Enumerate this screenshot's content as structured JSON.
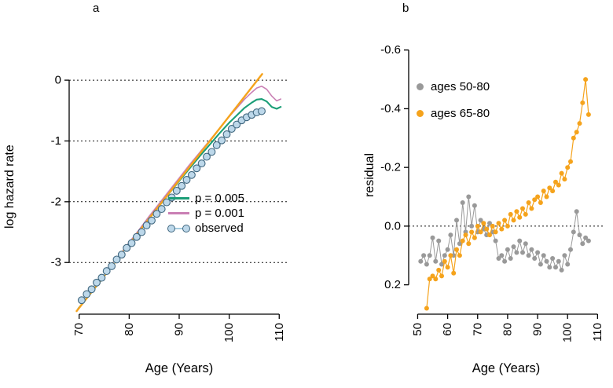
{
  "figure": {
    "background": "#ffffff",
    "panels": [
      {
        "label": "a"
      },
      {
        "label": "b"
      }
    ]
  },
  "chart_data": [
    {
      "type": "line",
      "panel": "a",
      "title": "",
      "xlabel": "Age (Years)",
      "ylabel": "log hazard rate",
      "xlim": [
        68,
        112
      ],
      "ylim": [
        -3.85,
        0.35
      ],
      "y_inverted": false,
      "grid": "dashed-horizontal",
      "gridlines_y": [
        0,
        -1,
        -2,
        -3
      ],
      "x_ticks": {
        "values": [
          70,
          80,
          90,
          100,
          110
        ],
        "labels": [
          "70",
          "80",
          "90",
          "100",
          "110"
        ],
        "rotated": true
      },
      "y_ticks": {
        "values": [
          0,
          -1,
          -2,
          -3
        ],
        "labels": [
          "0",
          "-1",
          "-2",
          "-3"
        ]
      },
      "legend_position": "center-right-inside",
      "legend": [
        {
          "label": "p = 0.005",
          "color": "#1B9E77",
          "marker": "line"
        },
        {
          "label": "p = 0.001",
          "color": "#C97FB4",
          "marker": "line"
        },
        {
          "label": "observed",
          "color": "#BDD8EA",
          "edge": "#40677F",
          "marker": "point-line"
        }
      ],
      "series": [
        {
          "name": "p = 0.005",
          "type": "line",
          "color": "#1B9E77",
          "width": 2.1,
          "x": [
            69.8,
            72,
            74,
            76,
            78,
            80,
            82,
            84,
            86,
            88,
            90,
            92,
            94,
            96,
            98,
            100,
            101.5,
            103,
            104.5,
            105.5,
            106.5,
            107.5,
            108.5,
            109.5,
            110.3
          ],
          "y": [
            -3.76,
            -3.54,
            -3.33,
            -3.12,
            -2.91,
            -2.7,
            -2.49,
            -2.28,
            -2.07,
            -1.86,
            -1.66,
            -1.46,
            -1.26,
            -1.07,
            -0.88,
            -0.7,
            -0.58,
            -0.46,
            -0.37,
            -0.32,
            -0.31,
            -0.35,
            -0.44,
            -0.47,
            -0.44
          ]
        },
        {
          "name": "p = 0.001",
          "type": "line",
          "color": "#C97FB4",
          "width": 1.6,
          "x": [
            69.8,
            72,
            74,
            76,
            78,
            80,
            82,
            84,
            86,
            88,
            90,
            92,
            94,
            96,
            98,
            100,
            101.5,
            103,
            104.5,
            105.5,
            106.5,
            107.5,
            108.5,
            109.5,
            110.3
          ],
          "y": [
            -3.76,
            -3.54,
            -3.32,
            -3.1,
            -2.89,
            -2.67,
            -2.46,
            -2.24,
            -2.03,
            -1.82,
            -1.61,
            -1.4,
            -1.2,
            -1.0,
            -0.8,
            -0.6,
            -0.46,
            -0.32,
            -0.2,
            -0.13,
            -0.1,
            -0.15,
            -0.26,
            -0.34,
            -0.31
          ]
        },
        {
          "name": "fit-line",
          "type": "line",
          "color": "#F5A31C",
          "width": 2.4,
          "x": [
            69.5,
            106.6
          ],
          "y": [
            -3.8,
            0.1
          ]
        },
        {
          "name": "observed",
          "type": "point-line",
          "color": "#A3CBDF",
          "point_fill": "#BDD8EA",
          "point_edge": "#40677F",
          "point_r": 4.4,
          "width": 1.4,
          "x": [
            70.5,
            71.5,
            72.5,
            73.5,
            74.5,
            75.5,
            76.5,
            77.5,
            78.5,
            79.5,
            80.5,
            81.5,
            82.5,
            83.5,
            84.5,
            85.5,
            86.5,
            87.5,
            88.5,
            89.5,
            90.5,
            91.5,
            92.5,
            93.5,
            94.5,
            95.5,
            96.5,
            97.5,
            98.5,
            99.5,
            100.5,
            101.5,
            102.5,
            103.5,
            104.5,
            105.5,
            106.5
          ],
          "y": [
            -3.62,
            -3.52,
            -3.44,
            -3.33,
            -3.25,
            -3.14,
            -3.06,
            -2.95,
            -2.87,
            -2.76,
            -2.68,
            -2.58,
            -2.5,
            -2.39,
            -2.31,
            -2.2,
            -2.12,
            -2.01,
            -1.93,
            -1.82,
            -1.74,
            -1.64,
            -1.56,
            -1.45,
            -1.37,
            -1.26,
            -1.18,
            -1.07,
            -0.99,
            -0.89,
            -0.8,
            -0.73,
            -0.66,
            -0.61,
            -0.57,
            -0.53,
            -0.51
          ]
        }
      ]
    },
    {
      "type": "scatter",
      "panel": "b",
      "title": "",
      "xlabel": "Age (Years)",
      "ylabel": "residual",
      "xlim": [
        47,
        112
      ],
      "ylim": [
        -0.65,
        0.3
      ],
      "y_inverted": true,
      "grid": "dashed-zero-line",
      "zero_line": 0.0,
      "x_ticks": {
        "values": [
          50,
          60,
          70,
          80,
          90,
          100,
          110
        ],
        "labels": [
          "50",
          "60",
          "70",
          "80",
          "90",
          "100",
          "110"
        ],
        "rotated": true
      },
      "y_ticks": {
        "values": [
          -0.6,
          -0.4,
          -0.2,
          0.0,
          0.2
        ],
        "labels": [
          "-0.6",
          "-0.4",
          "-0.2",
          "0.0",
          "0.2"
        ]
      },
      "legend_position": "top-left-inside",
      "legend": [
        {
          "label": "ages 50-80",
          "color": "#999999",
          "marker": "point"
        },
        {
          "label": "ages 65-80",
          "color": "#F5A31C",
          "marker": "point"
        }
      ],
      "series": [
        {
          "name": "ages 50-80",
          "type": "point-line",
          "color": "#999999",
          "point_fill": "#999999",
          "point_r": 3,
          "width": 1,
          "x": [
            51,
            52,
            53,
            54,
            55,
            56,
            57,
            58,
            59,
            60,
            61,
            62,
            63,
            64,
            65,
            66,
            67,
            68,
            69,
            70,
            71,
            72,
            73,
            74,
            75,
            76,
            77,
            78,
            79,
            80,
            81,
            82,
            83,
            84,
            85,
            86,
            87,
            88,
            89,
            90,
            91,
            92,
            93,
            94,
            95,
            96,
            97,
            98,
            99,
            100,
            101,
            102,
            103,
            104,
            105,
            106,
            107
          ],
          "y": [
            0.12,
            0.1,
            0.13,
            0.1,
            0.04,
            0.12,
            0.05,
            0.13,
            0.1,
            0.08,
            0.03,
            0.1,
            -0.02,
            0.06,
            -0.08,
            0.02,
            -0.1,
            0.0,
            -0.07,
            0.02,
            -0.02,
            0.01,
            0.03,
            -0.01,
            0.02,
            0.05,
            0.11,
            0.1,
            0.12,
            0.08,
            0.11,
            0.07,
            0.09,
            0.05,
            0.09,
            0.06,
            0.1,
            0.08,
            0.11,
            0.09,
            0.13,
            0.1,
            0.12,
            0.14,
            0.11,
            0.14,
            0.12,
            0.15,
            0.1,
            0.13,
            0.08,
            0.02,
            -0.05,
            0.03,
            0.06,
            0.04,
            0.05
          ]
        },
        {
          "name": "ages 65-80",
          "type": "point-line",
          "color": "#F5A31C",
          "point_fill": "#F5A31C",
          "point_r": 3,
          "width": 1.2,
          "x": [
            53,
            54,
            55,
            56,
            57,
            58,
            59,
            60,
            61,
            62,
            63,
            64,
            65,
            66,
            67,
            68,
            69,
            70,
            71,
            72,
            73,
            74,
            75,
            76,
            77,
            78,
            79,
            80,
            81,
            82,
            83,
            84,
            85,
            86,
            87,
            88,
            89,
            90,
            91,
            92,
            93,
            94,
            95,
            96,
            97,
            98,
            99,
            100,
            101,
            102,
            103,
            104,
            105,
            106,
            107
          ],
          "y": [
            0.28,
            0.18,
            0.17,
            0.18,
            0.15,
            0.17,
            0.12,
            0.14,
            0.1,
            0.16,
            0.08,
            0.1,
            0.05,
            0.03,
            0.06,
            0.02,
            0.04,
            0.0,
            0.02,
            -0.01,
            0.01,
            0.03,
            0.0,
            0.02,
            -0.01,
            0.01,
            -0.02,
            0.0,
            -0.04,
            -0.02,
            -0.05,
            -0.03,
            -0.06,
            -0.04,
            -0.08,
            -0.06,
            -0.09,
            -0.1,
            -0.08,
            -0.12,
            -0.1,
            -0.13,
            -0.12,
            -0.15,
            -0.14,
            -0.18,
            -0.16,
            -0.2,
            -0.22,
            -0.3,
            -0.32,
            -0.35,
            -0.42,
            -0.5,
            -0.38
          ]
        }
      ]
    }
  ]
}
